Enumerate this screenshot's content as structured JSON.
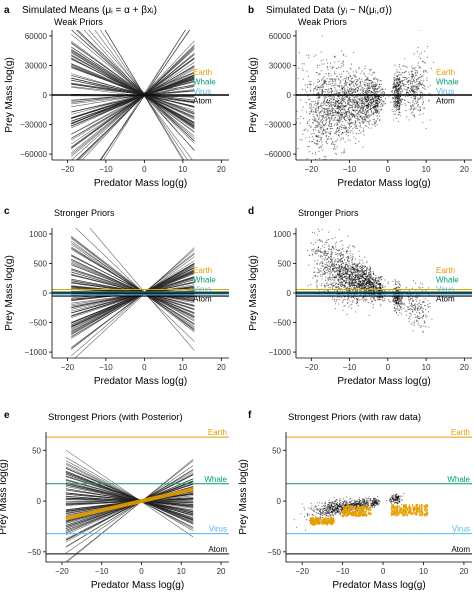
{
  "colors": {
    "axis": "#000000",
    "grid": "#e6e6e6",
    "prior_line": "#222222",
    "earth": "#E69F00",
    "whale": "#009E73",
    "virus": "#56B4E9",
    "atom": "#000000",
    "posterior": "#E69F00",
    "raw": "#E69F00"
  },
  "chart_data": [
    {
      "panel": "a",
      "type": "line",
      "title": "Simulated Means (μᵢ = α + βxᵢ)",
      "subtitle": "Weak Priors",
      "xlabel": "Predator Mass log(g)",
      "ylabel": "Prey Mass log(g)",
      "xlim": [
        -24,
        22
      ],
      "ylim": [
        -66000,
        66000
      ],
      "xticks": [
        -20,
        -10,
        0,
        10,
        20
      ],
      "yticks": [
        -60000,
        -30000,
        0,
        30000,
        60000
      ],
      "ytick_labels": [
        "−60000",
        "−30000",
        "0",
        "30000",
        "60000"
      ],
      "zero_line": 0,
      "line_range": [
        -19,
        13
      ],
      "pivot": [
        0,
        0
      ],
      "slope_spread": 2600,
      "n_lines": 110,
      "seed": 11,
      "references": [
        {
          "label": "Earth",
          "y": 60,
          "color_key": "earth"
        },
        {
          "label": "Whale",
          "y": 18,
          "color_key": "whale"
        },
        {
          "label": "Virus",
          "y": -32,
          "color_key": "virus"
        },
        {
          "label": "Atom",
          "y": -52,
          "color_key": "atom"
        }
      ],
      "reference_label_mode": "stacked"
    },
    {
      "panel": "b",
      "type": "scatter",
      "title": "Simulated Data (yᵢ ~ N(μᵢ,σ))",
      "subtitle": "Weak Priors",
      "xlabel": "Predator Mass log(g)",
      "ylabel": "Prey Mass log(g)",
      "xlim": [
        -24,
        22
      ],
      "ylim": [
        -66000,
        66000
      ],
      "xticks": [
        -20,
        -10,
        0,
        10,
        20
      ],
      "yticks": [
        -60000,
        -30000,
        0,
        30000,
        60000
      ],
      "ytick_labels": [
        "−60000",
        "−30000",
        "0",
        "30000",
        "60000"
      ],
      "zero_line": 0,
      "x_clusters": [
        [
          -12,
          5,
          0.55
        ],
        [
          -5,
          1.6,
          0.12
        ],
        [
          -3,
          0.6,
          0.05
        ],
        [
          2.5,
          0.6,
          0.1
        ],
        [
          7,
          1.8,
          0.12
        ],
        [
          -18,
          1.6,
          0.06
        ]
      ],
      "y_scale": 15000,
      "slope_scale": 900,
      "n_points": 2600,
      "seed": 22,
      "references": [
        {
          "label": "Earth",
          "y": 60,
          "color_key": "earth"
        },
        {
          "label": "Whale",
          "y": 18,
          "color_key": "whale"
        },
        {
          "label": "Virus",
          "y": -32,
          "color_key": "virus"
        },
        {
          "label": "Atom",
          "y": -52,
          "color_key": "atom"
        }
      ],
      "reference_label_mode": "stacked"
    },
    {
      "panel": "c",
      "type": "line",
      "title": "",
      "subtitle": "Stronger Priors",
      "xlabel": "Predator Mass log(g)",
      "ylabel": "Prey Mass log(g)",
      "xlim": [
        -24,
        22
      ],
      "ylim": [
        -1100,
        1100
      ],
      "xticks": [
        -20,
        -10,
        0,
        10,
        20
      ],
      "yticks": [
        -1000,
        -500,
        0,
        500,
        1000
      ],
      "ytick_labels": [
        "−1000",
        "−500",
        "0",
        "500",
        "1000"
      ],
      "zero_line": 0,
      "line_range": [
        -19,
        13
      ],
      "pivot": [
        0,
        0
      ],
      "slope_spread": 26,
      "n_lines": 110,
      "seed": 33,
      "references": [
        {
          "label": "Earth",
          "y": 60,
          "color_key": "earth"
        },
        {
          "label": "Whale",
          "y": 18,
          "color_key": "whale"
        },
        {
          "label": "Virus",
          "y": -32,
          "color_key": "virus"
        },
        {
          "label": "Atom",
          "y": -52,
          "color_key": "atom"
        }
      ],
      "reference_label_mode": "stacked"
    },
    {
      "panel": "d",
      "type": "scatter",
      "title": "",
      "subtitle": "Stronger Priors",
      "xlabel": "Predator Mass log(g)",
      "ylabel": "Prey Mass log(g)",
      "xlim": [
        -24,
        22
      ],
      "ylim": [
        -1100,
        1100
      ],
      "xticks": [
        -20,
        -10,
        0,
        10,
        20
      ],
      "yticks": [
        -1000,
        -500,
        0,
        500,
        1000
      ],
      "ytick_labels": [
        "−1000",
        "−500",
        "0",
        "500",
        "1000"
      ],
      "zero_line": 0,
      "x_clusters": [
        [
          -10,
          4,
          0.6
        ],
        [
          -5,
          1.5,
          0.12
        ],
        [
          -2,
          0.5,
          0.05
        ],
        [
          2.5,
          0.6,
          0.1
        ],
        [
          7,
          2,
          0.08
        ],
        [
          -17,
          1.5,
          0.05
        ]
      ],
      "y_scale": 180,
      "slope_scale": -28,
      "n_points": 2200,
      "seed": 44,
      "references": [
        {
          "label": "Earth",
          "y": 60,
          "color_key": "earth"
        },
        {
          "label": "Whale",
          "y": 18,
          "color_key": "whale"
        },
        {
          "label": "Virus",
          "y": -32,
          "color_key": "virus"
        },
        {
          "label": "Atom",
          "y": -52,
          "color_key": "atom"
        }
      ],
      "reference_label_mode": "stacked"
    },
    {
      "panel": "e",
      "type": "line",
      "title": "",
      "subtitle": "Strongest Priors (with Posterior)",
      "xlabel": "Predator Mass log(g)",
      "ylabel": "Prey Mass log(g)",
      "xlim": [
        -24,
        22
      ],
      "ylim": [
        -60,
        68
      ],
      "xticks": [
        -20,
        -10,
        0,
        10,
        20
      ],
      "yticks": [
        -50,
        0,
        50
      ],
      "ytick_labels": [
        "−50",
        "0",
        "50"
      ],
      "zero_line": null,
      "line_range": [
        -19,
        13
      ],
      "pivot": [
        0,
        0
      ],
      "slope_spread": 1.3,
      "n_lines": 110,
      "seed": 55,
      "posterior": {
        "intercept": 0,
        "slope": 0.9,
        "width": 4
      },
      "references": [
        {
          "label": "Earth",
          "y": 63,
          "color_key": "earth"
        },
        {
          "label": "Whale",
          "y": 17,
          "color_key": "whale"
        },
        {
          "label": "Virus",
          "y": -32,
          "color_key": "virus"
        },
        {
          "label": "Atom",
          "y": -52,
          "color_key": "atom"
        }
      ],
      "reference_label_mode": "right"
    },
    {
      "panel": "f",
      "type": "scatter",
      "title": "",
      "subtitle": "Strongest Priors (with raw data)",
      "xlabel": "Predator Mass log(g)",
      "ylabel": "Prey Mass log(g)",
      "xlim": [
        -24,
        22
      ],
      "ylim": [
        -60,
        68
      ],
      "xticks": [
        -20,
        -10,
        0,
        10,
        20
      ],
      "yticks": [
        -50,
        0,
        50
      ],
      "ytick_labels": [
        "−50",
        "0",
        "50"
      ],
      "zero_line": null,
      "x_clusters": [
        [
          -11,
          3.5,
          0.6
        ],
        [
          -5,
          1.5,
          0.15
        ],
        [
          -2,
          0.6,
          0.1
        ],
        [
          3,
          0.8,
          0.15
        ]
      ],
      "y_scale": 3,
      "slope_scale": 0.6,
      "n_points": 900,
      "seed": 66,
      "raw": {
        "segments": [
          [
            -18,
            -12,
            -23,
            6
          ],
          [
            -10,
            -3,
            -15,
            10
          ],
          [
            2,
            11,
            -14,
            10
          ]
        ],
        "n_points": 420
      },
      "references": [
        {
          "label": "Earth",
          "y": 63,
          "color_key": "earth"
        },
        {
          "label": "Whale",
          "y": 17,
          "color_key": "whale"
        },
        {
          "label": "Virus",
          "y": -32,
          "color_key": "virus"
        },
        {
          "label": "Atom",
          "y": -52,
          "color_key": "atom"
        }
      ],
      "reference_label_mode": "right"
    }
  ]
}
